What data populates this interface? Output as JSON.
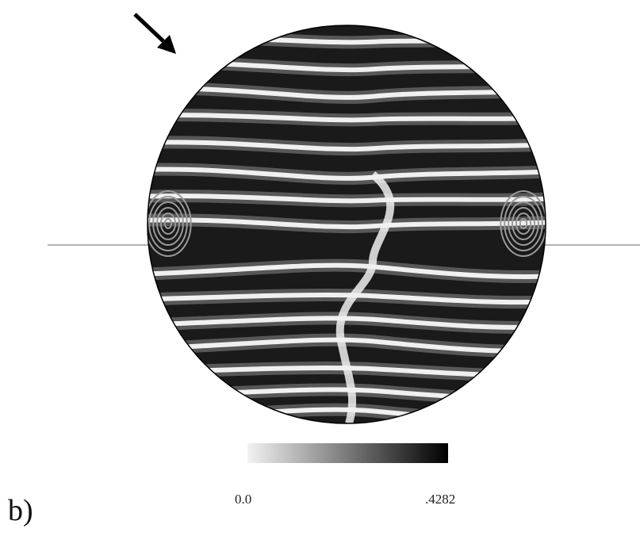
{
  "figure": {
    "panel_label": "b)",
    "colorbar": {
      "min_label": "0.0",
      "max_label": ".4282",
      "low_color": "#f2f2f2",
      "high_color": "#000000"
    },
    "colors": {
      "horizontal_line": "#9a9a9a",
      "fringe_light": "#f0f0f0",
      "fringe_dark": "#111111",
      "arrow": "#000000",
      "disk_outline": "#000000"
    }
  }
}
